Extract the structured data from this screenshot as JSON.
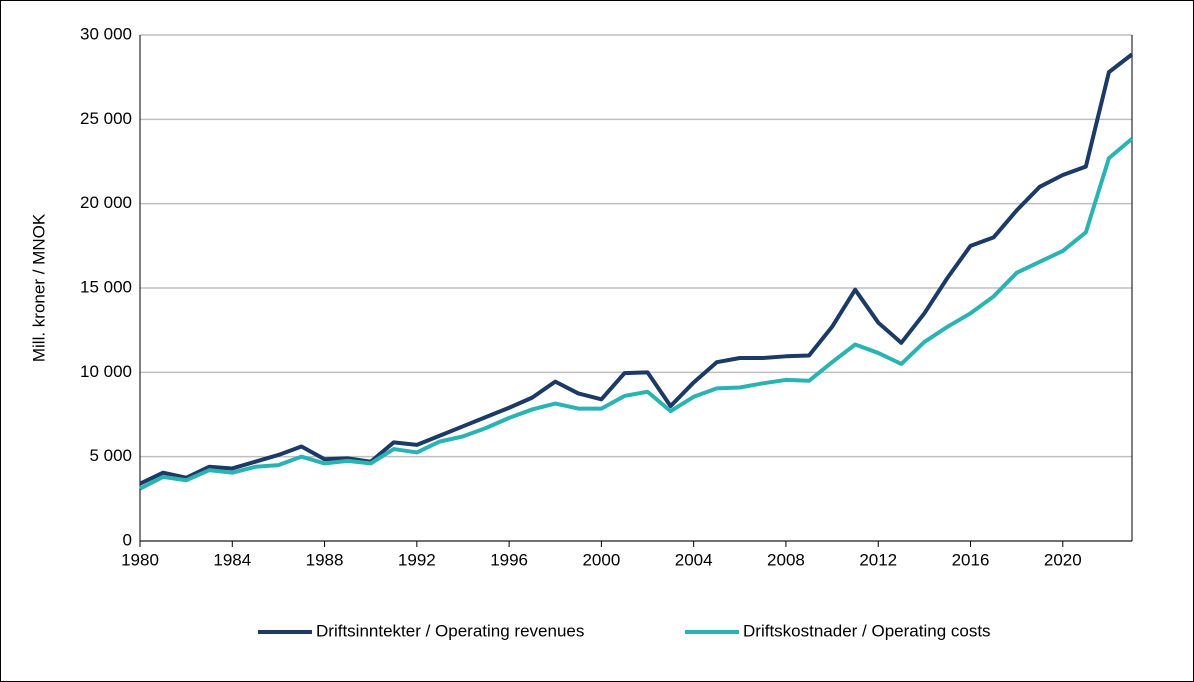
{
  "chart_data": {
    "type": "line",
    "ylabel": "Mill. kroner / MNOK",
    "x": [
      1980,
      1981,
      1982,
      1983,
      1984,
      1985,
      1986,
      1987,
      1988,
      1989,
      1990,
      1991,
      1992,
      1993,
      1994,
      1995,
      1996,
      1997,
      1998,
      1999,
      2000,
      2001,
      2002,
      2003,
      2004,
      2005,
      2006,
      2007,
      2008,
      2009,
      2010,
      2011,
      2012,
      2013,
      2014,
      2015,
      2016,
      2017,
      2018,
      2019,
      2020,
      2021,
      2022,
      2023
    ],
    "series": [
      {
        "name": "Driftsinntekter / Operating revenues",
        "color": "#1b3a66",
        "values": [
          3400,
          4050,
          3750,
          4400,
          4300,
          4700,
          5100,
          5600,
          4850,
          4900,
          4700,
          5850,
          5700,
          6250,
          6800,
          7350,
          7900,
          8500,
          9450,
          8750,
          8400,
          9950,
          10000,
          8000,
          9400,
          10600,
          10850,
          10850,
          10950,
          11000,
          12700,
          14900,
          12950,
          11750,
          13500,
          15600,
          17500,
          18000,
          19600,
          21000,
          21700,
          22200,
          27800,
          28850
        ]
      },
      {
        "name": "Driftskostnader / Operating costs",
        "color": "#2bb3b3",
        "values": [
          3100,
          3800,
          3600,
          4200,
          4050,
          4400,
          4500,
          5000,
          4600,
          4750,
          4600,
          5450,
          5250,
          5900,
          6200,
          6700,
          7300,
          7800,
          8150,
          7850,
          7850,
          8600,
          8850,
          7700,
          8550,
          9050,
          9100,
          9350,
          9550,
          9500,
          10600,
          11650,
          11150,
          10500,
          11800,
          12700,
          13500,
          14500,
          15900,
          16550,
          17200,
          18300,
          22700,
          23850
        ]
      }
    ],
    "xlim": [
      1980,
      2023
    ],
    "xticks": [
      1980,
      1984,
      1988,
      1992,
      1996,
      2000,
      2004,
      2008,
      2012,
      2016,
      2020
    ],
    "ylim": [
      0,
      30000
    ],
    "yticks": [
      0,
      {
        "value": 5000,
        "label": "5 000"
      },
      {
        "value": 10000,
        "label": "10 000"
      },
      {
        "value": 15000,
        "label": "15 000"
      },
      {
        "value": 20000,
        "label": "20 000"
      },
      {
        "value": 25000,
        "label": "25 000"
      },
      {
        "value": 30000,
        "label": "30 000"
      }
    ],
    "grid": true,
    "legend": "bottom"
  }
}
